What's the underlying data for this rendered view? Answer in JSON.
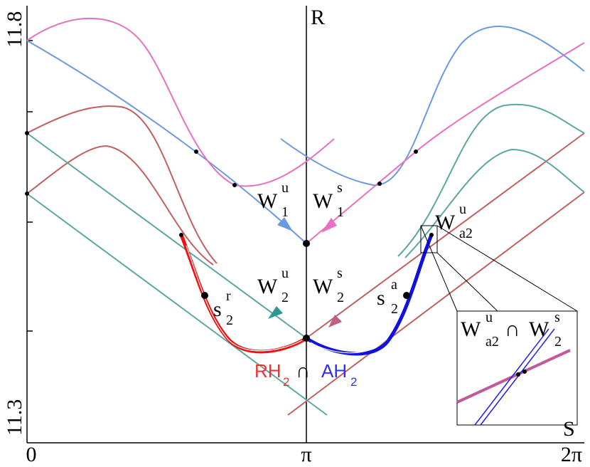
{
  "axes": {
    "y_max": "11.8",
    "y_min": "11.3",
    "x_zero": "0",
    "x_pi": "π",
    "x_2pi": "2π",
    "y_name": "R",
    "x_name": "S"
  },
  "labels": {
    "w1u": {
      "base": "W",
      "sup": "u",
      "sub": "1"
    },
    "w1s": {
      "base": "W",
      "sup": "s",
      "sub": "1"
    },
    "w2u": {
      "base": "W",
      "sup": "u",
      "sub": "2"
    },
    "w2s": {
      "base": "W",
      "sup": "s",
      "sub": "2"
    },
    "s2a": {
      "base": "s",
      "sup": "a",
      "sub": "2"
    },
    "s2r": {
      "base": "s",
      "sup": "r",
      "sub": "2"
    },
    "wa2u": {
      "base": "W",
      "sup": "u",
      "sub": "a2"
    }
  },
  "intersection_label": {
    "left": "RH",
    "left_sub": "2",
    "cap": "∩",
    "right": "AH",
    "right_sub": "2"
  },
  "inset_label": {
    "left": "W",
    "left_sup": "u",
    "left_sub": "a2",
    "cap": "∩",
    "right": "W",
    "right_sup": "s",
    "right_sub": "2"
  }
}
